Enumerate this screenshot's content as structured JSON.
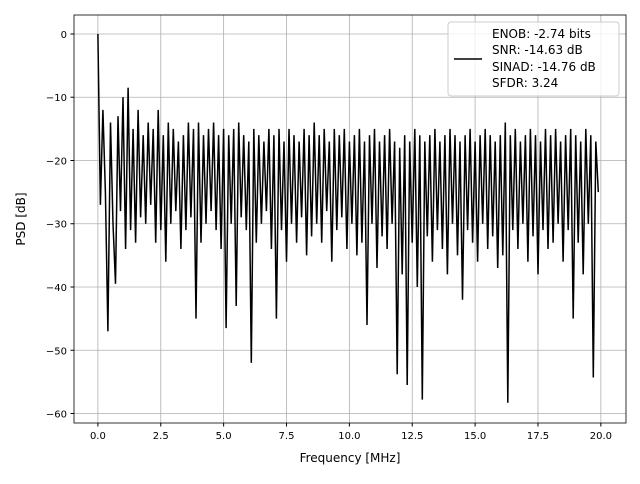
{
  "chart_data": {
    "type": "line",
    "title": "",
    "xlabel": "Frequency [MHz]",
    "ylabel": "PSD [dB]",
    "xlim": [
      -0.95,
      21.0
    ],
    "ylim": [
      -61.5,
      3.0
    ],
    "xticks": [
      0.0,
      2.5,
      5.0,
      7.5,
      10.0,
      12.5,
      15.0,
      17.5,
      20.0
    ],
    "xtick_labels": [
      "0.0",
      "2.5",
      "5.0",
      "7.5",
      "10.0",
      "12.5",
      "15.0",
      "17.5",
      "20.0"
    ],
    "yticks": [
      0,
      -10,
      -20,
      -30,
      -40,
      -50,
      -60
    ],
    "ytick_labels": [
      "0",
      "−10",
      "−20",
      "−30",
      "−40",
      "−50",
      "−60"
    ],
    "grid": true,
    "legend": {
      "placement": "top-right",
      "entries": [
        "ENOB: -2.74 bits",
        "SNR: -14.63 dB",
        "SINAD: -14.76 dB",
        "SFDR: 3.24"
      ]
    },
    "series": [
      {
        "name": "PSD",
        "color": "#000000",
        "x_start": 0,
        "x_step": 0.1,
        "values": [
          0,
          -27,
          -12,
          -25,
          -47,
          -14,
          -30,
          -39.5,
          -13,
          -28,
          -10,
          -34,
          -8.5,
          -31,
          -15,
          -33,
          -12,
          -29,
          -16,
          -30,
          -14,
          -27,
          -15,
          -33,
          -12,
          -31,
          -16,
          -36,
          -14,
          -30,
          -15,
          -28,
          -17,
          -34,
          -16,
          -31,
          -14,
          -29,
          -15,
          -45,
          -14,
          -33,
          -16,
          -30,
          -15,
          -28,
          -14,
          -31,
          -16,
          -34,
          -15,
          -46.5,
          -16,
          -30,
          -15,
          -43,
          -14,
          -29,
          -16,
          -31,
          -17,
          -52,
          -15,
          -33,
          -16,
          -30,
          -17,
          -28,
          -15,
          -34,
          -16,
          -45,
          -15,
          -31,
          -17,
          -36,
          -15,
          -30,
          -16,
          -33,
          -17,
          -29,
          -15,
          -35,
          -16,
          -32,
          -14,
          -30,
          -16,
          -33,
          -15,
          -28,
          -17,
          -36,
          -15,
          -31,
          -16,
          -29,
          -15,
          -34,
          -17,
          -30,
          -16,
          -35,
          -15,
          -33,
          -17,
          -46,
          -16,
          -30,
          -15,
          -37,
          -17,
          -32,
          -16,
          -34,
          -15,
          -30,
          -17,
          -53.8,
          -18,
          -38,
          -16,
          -55.5,
          -17,
          -33,
          -15,
          -40,
          -16,
          -57.8,
          -17,
          -32,
          -16,
          -36,
          -15,
          -31,
          -17,
          -34,
          -16,
          -38,
          -15,
          -30,
          -16,
          -35,
          -17,
          -42,
          -16,
          -31,
          -15,
          -33,
          -17,
          -36,
          -16,
          -30,
          -15,
          -34,
          -16,
          -32,
          -17,
          -37,
          -16,
          -35,
          -14,
          -58.3,
          -16,
          -31,
          -15,
          -34,
          -17,
          -30,
          -16,
          -36,
          -15,
          -32,
          -16,
          -38,
          -17,
          -31,
          -15,
          -34,
          -16,
          -33,
          -15,
          -30,
          -17,
          -36,
          -16,
          -31,
          -15,
          -45,
          -16,
          -33,
          -17,
          -38,
          -15,
          -30,
          -16,
          -54.3,
          -17,
          -25
        ]
      }
    ]
  }
}
